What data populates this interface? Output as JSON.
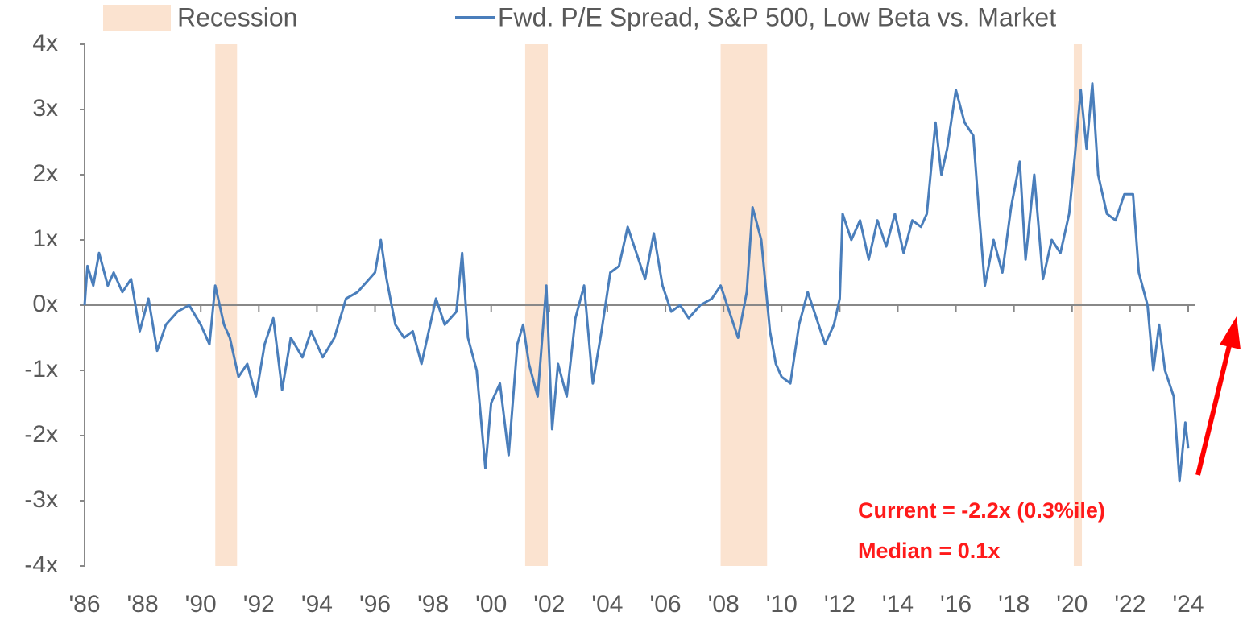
{
  "chart_data": {
    "type": "line",
    "xlim": [
      1986,
      2024
    ],
    "ylim": [
      -4,
      4
    ],
    "yticks": [
      {
        "value": 4,
        "label": "4x"
      },
      {
        "value": 3,
        "label": "3x"
      },
      {
        "value": 2,
        "label": "2x"
      },
      {
        "value": 1,
        "label": "1x"
      },
      {
        "value": 0,
        "label": "0x"
      },
      {
        "value": -1,
        "label": "-1x"
      },
      {
        "value": -2,
        "label": "-2x"
      },
      {
        "value": -3,
        "label": "-3x"
      },
      {
        "value": -4,
        "label": "-4x"
      }
    ],
    "xticks": [
      {
        "value": 1986,
        "label": "'86"
      },
      {
        "value": 1988,
        "label": "'88"
      },
      {
        "value": 1990,
        "label": "'90"
      },
      {
        "value": 1992,
        "label": "'92"
      },
      {
        "value": 1994,
        "label": "'94"
      },
      {
        "value": 1996,
        "label": "'96"
      },
      {
        "value": 1998,
        "label": "'98"
      },
      {
        "value": 2000,
        "label": "'00"
      },
      {
        "value": 2002,
        "label": "'02"
      },
      {
        "value": 2004,
        "label": "'04"
      },
      {
        "value": 2006,
        "label": "'06"
      },
      {
        "value": 2008,
        "label": "'08"
      },
      {
        "value": 2010,
        "label": "'10"
      },
      {
        "value": 2012,
        "label": "'12"
      },
      {
        "value": 2014,
        "label": "'14"
      },
      {
        "value": 2016,
        "label": "'16"
      },
      {
        "value": 2018,
        "label": "'18"
      },
      {
        "value": 2020,
        "label": "'20"
      },
      {
        "value": 2022,
        "label": "'22"
      },
      {
        "value": 2024,
        "label": "'24"
      }
    ],
    "shaded": {
      "name": "Recession",
      "color": "#fbe3d0",
      "ranges": [
        [
          1990.5,
          1991.25
        ],
        [
          2001.17,
          2001.95
        ],
        [
          2007.9,
          2009.5
        ],
        [
          2020.06,
          2020.34
        ]
      ]
    },
    "series": [
      {
        "name": "Fwd. P/E Spread, S&P 500, Low Beta vs. Market",
        "color": "#4a7ebb",
        "x": [
          1986.0,
          1986.1,
          1986.3,
          1986.5,
          1986.8,
          1987.0,
          1987.3,
          1987.6,
          1987.9,
          1988.2,
          1988.5,
          1988.8,
          1989.2,
          1989.6,
          1990.0,
          1990.3,
          1990.5,
          1990.8,
          1991.0,
          1991.3,
          1991.6,
          1991.9,
          1992.2,
          1992.5,
          1992.8,
          1993.1,
          1993.5,
          1993.8,
          1994.2,
          1994.6,
          1995.0,
          1995.4,
          1995.8,
          1996.0,
          1996.2,
          1996.4,
          1996.7,
          1997.0,
          1997.3,
          1997.6,
          1997.9,
          1998.1,
          1998.4,
          1998.8,
          1999.0,
          1999.2,
          1999.5,
          1999.8,
          2000.0,
          2000.3,
          2000.6,
          2000.9,
          2001.1,
          2001.3,
          2001.6,
          2001.9,
          2002.1,
          2002.3,
          2002.6,
          2002.9,
          2003.2,
          2003.5,
          2003.8,
          2004.1,
          2004.4,
          2004.7,
          2005.0,
          2005.3,
          2005.6,
          2005.9,
          2006.2,
          2006.5,
          2006.8,
          2007.2,
          2007.6,
          2007.9,
          2008.2,
          2008.5,
          2008.8,
          2009.0,
          2009.3,
          2009.6,
          2009.8,
          2010.0,
          2010.3,
          2010.6,
          2010.9,
          2011.2,
          2011.5,
          2011.8,
          2012.0,
          2012.1,
          2012.4,
          2012.7,
          2013.0,
          2013.3,
          2013.6,
          2013.9,
          2014.2,
          2014.5,
          2014.8,
          2015.0,
          2015.3,
          2015.5,
          2015.7,
          2016.0,
          2016.3,
          2016.6,
          2016.8,
          2017.0,
          2017.3,
          2017.6,
          2017.9,
          2018.2,
          2018.4,
          2018.7,
          2019.0,
          2019.3,
          2019.6,
          2019.9,
          2020.1,
          2020.3,
          2020.5,
          2020.7,
          2020.9,
          2021.2,
          2021.5,
          2021.8,
          2022.1,
          2022.3,
          2022.6,
          2022.8,
          2023.0,
          2023.2,
          2023.5,
          2023.7,
          2023.9,
          2024.0
        ],
        "values": [
          0.0,
          0.6,
          0.3,
          0.8,
          0.3,
          0.5,
          0.2,
          0.4,
          -0.4,
          0.1,
          -0.7,
          -0.3,
          -0.1,
          0.0,
          -0.3,
          -0.6,
          0.3,
          -0.3,
          -0.5,
          -1.1,
          -0.9,
          -1.4,
          -0.6,
          -0.2,
          -1.3,
          -0.5,
          -0.8,
          -0.4,
          -0.8,
          -0.5,
          0.1,
          0.2,
          0.4,
          0.5,
          1.0,
          0.4,
          -0.3,
          -0.5,
          -0.4,
          -0.9,
          -0.3,
          0.1,
          -0.3,
          -0.1,
          0.8,
          -0.5,
          -1.0,
          -2.5,
          -1.5,
          -1.2,
          -2.3,
          -0.6,
          -0.3,
          -0.9,
          -1.4,
          0.3,
          -1.9,
          -0.9,
          -1.4,
          -0.2,
          0.3,
          -1.2,
          -0.4,
          0.5,
          0.6,
          1.2,
          0.8,
          0.4,
          1.1,
          0.3,
          -0.1,
          0.0,
          -0.2,
          0.0,
          0.1,
          0.3,
          -0.1,
          -0.5,
          0.2,
          1.5,
          1.0,
          -0.4,
          -0.9,
          -1.1,
          -1.2,
          -0.3,
          0.2,
          -0.2,
          -0.6,
          -0.3,
          0.1,
          1.4,
          1.0,
          1.3,
          0.7,
          1.3,
          0.9,
          1.4,
          0.8,
          1.3,
          1.2,
          1.4,
          2.8,
          2.0,
          2.4,
          3.3,
          2.8,
          2.6,
          1.4,
          0.3,
          1.0,
          0.5,
          1.5,
          2.2,
          0.7,
          2.0,
          0.4,
          1.0,
          0.8,
          1.4,
          2.3,
          3.3,
          2.4,
          3.4,
          2.0,
          1.4,
          1.3,
          1.7,
          1.7,
          0.5,
          0.0,
          -1.0,
          -0.3,
          -1.0,
          -1.4,
          -2.7,
          -1.8,
          -2.2
        ]
      }
    ],
    "annotations": [
      "Current = -2.2x (0.3%ile)",
      "Median = 0.1x"
    ]
  }
}
